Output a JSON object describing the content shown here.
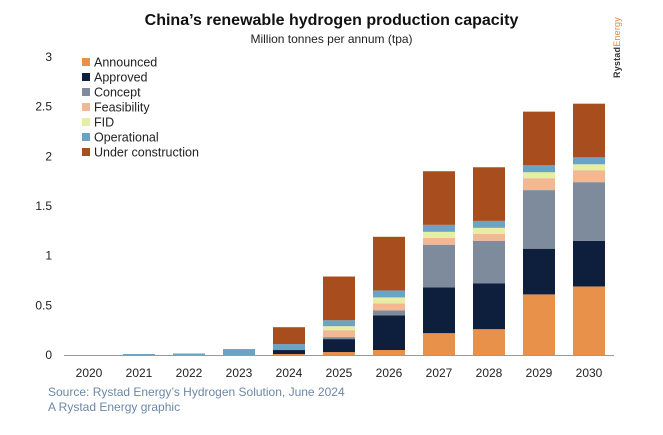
{
  "chart_data": {
    "type": "bar",
    "stacked": true,
    "title": "China’s renewable hydrogen production capacity",
    "subtitle": "Million tonnes per annum (tpa)",
    "xlabel": "",
    "ylabel": "",
    "ylim": [
      0,
      3
    ],
    "yticks": [
      0,
      0.5,
      1,
      1.5,
      2,
      2.5,
      3
    ],
    "ytick_labels": [
      "0",
      "0.5",
      "1",
      "1.5",
      "2",
      "2.5",
      "3"
    ],
    "grid": false,
    "legend_position": "top-left",
    "categories": [
      "2020",
      "2021",
      "2022",
      "2023",
      "2024",
      "2025",
      "2026",
      "2027",
      "2028",
      "2029",
      "2030"
    ],
    "series": [
      {
        "name": "Announced",
        "color": "#e8914b",
        "values": [
          0,
          0,
          0,
          0,
          0.01,
          0.03,
          0.05,
          0.22,
          0.26,
          0.61,
          0.69
        ]
      },
      {
        "name": "Approved",
        "color": "#0e1f3d",
        "values": [
          0,
          0,
          0,
          0,
          0.04,
          0.13,
          0.35,
          0.46,
          0.46,
          0.46,
          0.46
        ]
      },
      {
        "name": "Concept",
        "color": "#7e8b9c",
        "values": [
          0,
          0,
          0,
          0,
          0,
          0.02,
          0.05,
          0.43,
          0.43,
          0.59,
          0.59
        ]
      },
      {
        "name": "Feasibility",
        "color": "#f2b894",
        "values": [
          0,
          0,
          0,
          0,
          0,
          0.07,
          0.07,
          0.07,
          0.07,
          0.12,
          0.12
        ]
      },
      {
        "name": "FID",
        "color": "#e7eea3",
        "values": [
          0,
          0,
          0,
          0,
          0,
          0.04,
          0.06,
          0.06,
          0.06,
          0.06,
          0.06
        ]
      },
      {
        "name": "Operational",
        "color": "#6aa3c4",
        "values": [
          0,
          0.01,
          0.015,
          0.06,
          0.06,
          0.06,
          0.07,
          0.07,
          0.07,
          0.07,
          0.07
        ]
      },
      {
        "name": "Under construction",
        "color": "#a84d1e",
        "values": [
          0,
          0,
          0,
          0,
          0.17,
          0.44,
          0.54,
          0.54,
          0.54,
          0.54,
          0.54
        ]
      }
    ]
  },
  "brand": {
    "bold": "Rystad",
    "light": "Energy"
  },
  "source_lines": [
    "Source: Rystad Energy’s Hydrogen Solution, June 2024",
    "A Rystad Energy graphic"
  ]
}
